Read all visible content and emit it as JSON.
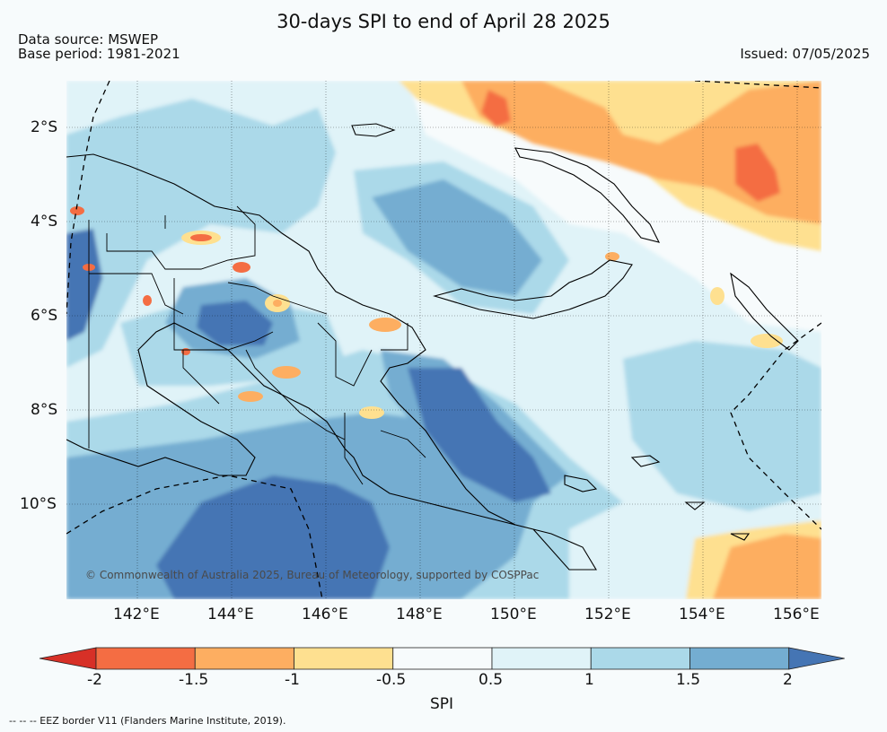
{
  "header": {
    "title": "30-days SPI to end of April 28 2025",
    "data_source": "Data source: MSWEP",
    "base_period": "Base period: 1981-2021",
    "issued": "Issued: 07/05/2025"
  },
  "map": {
    "lat_labels": [
      "2°S",
      "4°S",
      "6°S",
      "8°S",
      "10°S"
    ],
    "lon_labels": [
      "142°E",
      "144°E",
      "146°E",
      "148°E",
      "150°E",
      "152°E",
      "154°E",
      "156°E"
    ],
    "credit": "© Commonwealth of Australia 2025, Bureau of Meteorology, supported by COSPPac"
  },
  "colorbar": {
    "ticks": [
      "-2",
      "-1.5",
      "-1",
      "-0.5",
      "0.5",
      "1",
      "1.5",
      "2"
    ],
    "label": "SPI",
    "colors": [
      "#d73027",
      "#f46d43",
      "#fdae61",
      "#fee090",
      "#f7fbfc",
      "#e0f3f8",
      "#abd9e9",
      "#74add1",
      "#4575b4"
    ]
  },
  "footer": {
    "eez_note": "--  --  -- EEZ border V11 (Flanders Marine Institute, 2019)."
  }
}
